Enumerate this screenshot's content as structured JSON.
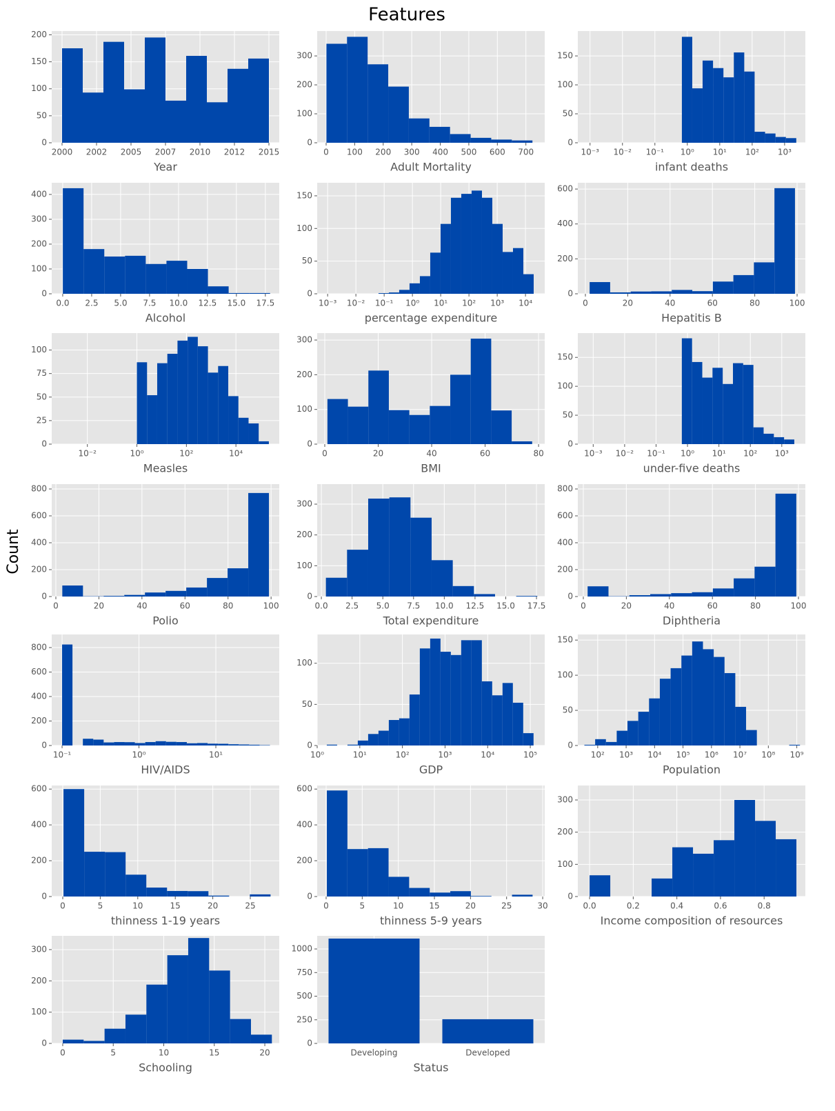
{
  "title": "Features",
  "ylabel": "Count",
  "chart_data": [
    {
      "type": "histogram",
      "xlabel": "Year",
      "color": "#0047ab",
      "grid": true,
      "bins": [
        2000,
        2001.5,
        2003,
        2004.5,
        2006,
        2007.5,
        2009,
        2010.5,
        2012,
        2013.5,
        2015
      ],
      "values": [
        175,
        93,
        187,
        99,
        195,
        78,
        161,
        75,
        137,
        156
      ],
      "xlim": [
        1999.25,
        2015.75
      ],
      "ylim": [
        0,
        207
      ],
      "xticks": [
        2000,
        {
          "value": 2002.5,
          "label": "2002"
        },
        2005,
        {
          "value": 2007.5,
          "label": "2007"
        },
        2010,
        {
          "value": 2012.5,
          "label": "2012"
        },
        2015
      ],
      "yticks": [
        0,
        50,
        100,
        150,
        200
      ]
    },
    {
      "type": "histogram",
      "xlabel": "Adult Mortality",
      "color": "#0047ab",
      "grid": true,
      "bins": [
        1,
        73.2,
        145.4,
        217.6,
        289.8,
        362,
        434.2,
        506.4,
        578.6,
        650.8,
        723
      ],
      "values": [
        342,
        366,
        271,
        194,
        84,
        55,
        30,
        17,
        11,
        8
      ],
      "xlim": [
        -31.4,
        766
      ],
      "ylim": [
        0,
        386
      ],
      "xticks": [
        0,
        100,
        200,
        300,
        400,
        500,
        600,
        700
      ],
      "yticks": [
        0,
        100,
        200,
        300
      ]
    },
    {
      "type": "histogram",
      "xlabel": "infant deaths",
      "color": "#0047ab",
      "grid": true,
      "xscale": "log",
      "bins": [
        0.68,
        1.42,
        2.96,
        6.21,
        13.0,
        27.2,
        57.0,
        119,
        250,
        524,
        1096,
        2291
      ],
      "values": [
        183,
        94,
        142,
        129,
        113,
        156,
        123,
        19,
        16,
        10,
        8
      ],
      "xlim": [
        0.00042,
        4365
      ],
      "ylim": [
        0,
        193
      ],
      "xticks": [
        {
          "value": 0.001,
          "label": "10⁻³"
        },
        {
          "value": 0.01,
          "label": "10⁻²"
        },
        {
          "value": 0.1,
          "label": "10⁻¹"
        },
        {
          "value": 1,
          "label": "10⁰"
        },
        {
          "value": 10,
          "label": "10¹"
        },
        {
          "value": 100,
          "label": "10²"
        },
        {
          "value": 1000,
          "label": "10³"
        }
      ],
      "yticks": [
        0,
        50,
        100,
        150
      ]
    },
    {
      "type": "histogram",
      "xlabel": "Alcohol",
      "color": "#0047ab",
      "grid": true,
      "bins": [
        0.01,
        1.8,
        3.59,
        5.38,
        7.17,
        8.96,
        10.75,
        12.54,
        14.33,
        16.12,
        17.91
      ],
      "values": [
        425,
        180,
        150,
        153,
        120,
        133,
        100,
        30,
        3,
        3
      ],
      "xlim": [
        -0.95,
        18.7
      ],
      "ylim": [
        0,
        447
      ],
      "xticks": [
        {
          "value": 0,
          "label": "0.0"
        },
        2.5,
        {
          "value": 5,
          "label": "5.0"
        },
        7.5,
        {
          "value": 10,
          "label": "10.0"
        },
        12.5,
        {
          "value": 15,
          "label": "15.0"
        },
        17.5
      ],
      "yticks": [
        0,
        100,
        200,
        300,
        400
      ]
    },
    {
      "type": "histogram",
      "xlabel": "percentage expenditure",
      "color": "#0047ab",
      "grid": true,
      "xscale": "log",
      "bins": [
        0.0631,
        0.1466,
        0.3404,
        0.7907,
        1.837,
        4.266,
        9.908,
        23.01,
        53.46,
        124.2,
        288.4,
        669.9,
        1556,
        3614,
        8395,
        19498
      ],
      "values": [
        1,
        2,
        6,
        16,
        27,
        63,
        107,
        147,
        153,
        158,
        147,
        107,
        64,
        70,
        30
      ],
      "xlim": [
        0.000427,
        47900
      ],
      "ylim": [
        0,
        170
      ],
      "xticks": [
        {
          "value": 0.001,
          "label": "10⁻³"
        },
        {
          "value": 0.01,
          "label": "10⁻²"
        },
        {
          "value": 0.1,
          "label": "10⁻¹"
        },
        {
          "value": 1,
          "label": "10⁰"
        },
        {
          "value": 10,
          "label": "10¹"
        },
        {
          "value": 100,
          "label": "10²"
        },
        {
          "value": 1000,
          "label": "10³"
        },
        {
          "value": 10000,
          "label": "10⁴"
        }
      ],
      "yticks": [
        0,
        50,
        100,
        150
      ]
    },
    {
      "type": "histogram",
      "xlabel": "Hepatitis B",
      "color": "#0047ab",
      "grid": true,
      "bins": [
        2,
        11.7,
        21.4,
        31.1,
        40.8,
        50.5,
        60.2,
        69.9,
        79.6,
        89.3,
        99
      ],
      "values": [
        67,
        8,
        13,
        14,
        22,
        15,
        70,
        107,
        180,
        605
      ],
      "xlim": [
        -3.58,
        103.9
      ],
      "ylim": [
        0,
        636
      ],
      "xticks": [
        0,
        20,
        40,
        60,
        80,
        100
      ],
      "yticks": [
        0,
        200,
        400,
        600
      ]
    },
    {
      "type": "histogram",
      "xlabel": "Measles",
      "color": "#0047ab",
      "grid": true,
      "xscale": "log",
      "bins": [
        1,
        2.57,
        6.607,
        16.98,
        43.65,
        112.2,
        288.4,
        741.3,
        1905,
        4898,
        12589,
        32359,
        83176,
        213796
      ],
      "values": [
        87,
        52,
        86,
        96,
        110,
        114,
        104,
        76,
        83,
        51,
        28,
        22,
        3
      ],
      "xlim": [
        0.000363,
        562000
      ],
      "ylim": [
        0,
        118
      ],
      "xticks": [
        {
          "value": 0.01,
          "label": "10⁻²"
        },
        {
          "value": 1,
          "label": "10⁰"
        },
        {
          "value": 100,
          "label": "10²"
        },
        {
          "value": 10000,
          "label": "10⁴"
        }
      ],
      "yticks": [
        0,
        25,
        50,
        75,
        100
      ]
    },
    {
      "type": "histogram",
      "xlabel": "BMI",
      "color": "#0047ab",
      "grid": true,
      "bins": [
        1,
        8.66,
        16.32,
        23.98,
        31.64,
        39.3,
        46.96,
        54.62,
        62.28,
        69.94,
        77.6
      ],
      "values": [
        130,
        108,
        212,
        98,
        84,
        110,
        200,
        304,
        97,
        8
      ],
      "xlim": [
        -2.84,
        82.3
      ],
      "ylim": [
        0,
        320
      ],
      "xticks": [
        0,
        20,
        40,
        60,
        80
      ],
      "yticks": [
        0,
        100,
        200,
        300
      ]
    },
    {
      "type": "histogram",
      "xlabel": "under-five deaths",
      "color": "#0047ab",
      "grid": true,
      "xscale": "log",
      "bins": [
        0.661,
        1.397,
        2.955,
        6.25,
        13.22,
        27.96,
        59.14,
        125.1,
        264.5,
        559.5,
        1183,
        2502
      ],
      "values": [
        183,
        142,
        115,
        132,
        104,
        140,
        137,
        29,
        18,
        12,
        8
      ],
      "xlim": [
        0.000324,
        5623
      ],
      "ylim": [
        0,
        192
      ],
      "xticks": [
        {
          "value": 0.001,
          "label": "10⁻³"
        },
        {
          "value": 0.01,
          "label": "10⁻²"
        },
        {
          "value": 0.1,
          "label": "10⁻¹"
        },
        {
          "value": 1,
          "label": "10⁰"
        },
        {
          "value": 10,
          "label": "10¹"
        },
        {
          "value": 100,
          "label": "10²"
        },
        {
          "value": 1000,
          "label": "10³"
        }
      ],
      "yticks": [
        0,
        50,
        100,
        150
      ]
    },
    {
      "type": "histogram",
      "xlabel": "Polio",
      "color": "#0047ab",
      "grid": true,
      "bins": [
        3,
        12.6,
        22.2,
        31.8,
        41.4,
        51,
        60.6,
        70.2,
        79.8,
        89.4,
        99
      ],
      "values": [
        82,
        2,
        5,
        12,
        30,
        42,
        67,
        138,
        210,
        770
      ],
      "xlim": [
        -1.92,
        103.8
      ],
      "ylim": [
        0,
        836
      ],
      "xticks": [
        0,
        20,
        40,
        60,
        80,
        100
      ],
      "yticks": [
        0,
        200,
        400,
        600,
        800
      ]
    },
    {
      "type": "histogram",
      "xlabel": "Total expenditure",
      "color": "#0047ab",
      "grid": true,
      "bins": [
        0.37,
        2.09,
        3.81,
        5.53,
        7.25,
        8.97,
        10.69,
        12.41,
        14.13,
        15.85,
        17.57
      ],
      "values": [
        61,
        152,
        318,
        322,
        256,
        118,
        34,
        8,
        0,
        2
      ],
      "xlim": [
        -0.34,
        18.17
      ],
      "ylim": [
        0,
        365
      ],
      "xticks": [
        {
          "value": 0,
          "label": "0.0"
        },
        2.5,
        {
          "value": 5,
          "label": "5.0"
        },
        7.5,
        {
          "value": 10,
          "label": "10.0"
        },
        12.5,
        {
          "value": 15,
          "label": "15.0"
        },
        17.5
      ],
      "yticks": [
        0,
        100,
        200,
        300
      ]
    },
    {
      "type": "histogram",
      "xlabel": "Diphtheria",
      "color": "#0047ab",
      "grid": true,
      "bins": [
        2,
        11.7,
        21.4,
        31.1,
        40.8,
        50.5,
        60.2,
        69.9,
        79.6,
        89.3,
        99
      ],
      "values": [
        76,
        2,
        10,
        18,
        25,
        32,
        60,
        135,
        222,
        765
      ],
      "xlim": [
        -2.56,
        103.2
      ],
      "ylim": [
        0,
        836
      ],
      "xticks": [
        0,
        20,
        40,
        60,
        80,
        100
      ],
      "yticks": [
        0,
        200,
        400,
        600,
        800
      ]
    },
    {
      "type": "histogram",
      "xlabel": "HIV/AIDS",
      "color": "#0047ab",
      "grid": true,
      "xscale": "log",
      "bins": [
        0.1,
        0.1365,
        0.1864,
        0.2544,
        0.3473,
        0.4742,
        0.6474,
        0.8838,
        1.207,
        1.647,
        2.249,
        3.07,
        4.192,
        5.722,
        7.812,
        10.67,
        14.56,
        19.88,
        27.14,
        37.05,
        50.58
      ],
      "values": [
        825,
        0,
        55,
        48,
        25,
        28,
        27,
        20,
        28,
        35,
        30,
        28,
        18,
        20,
        15,
        14,
        10,
        8,
        6,
        3
      ],
      "xlim": [
        0.0733,
        66.8
      ],
      "ylim": [
        0,
        907
      ],
      "xticks": [
        {
          "value": 0.1,
          "label": "10⁻¹"
        },
        {
          "value": 1,
          "label": "10⁰"
        },
        {
          "value": 10,
          "label": "10¹"
        }
      ],
      "yticks": [
        0,
        200,
        400,
        600,
        800
      ]
    },
    {
      "type": "histogram",
      "xlabel": "GDP",
      "color": "#0047ab",
      "grid": true,
      "xscale": "log",
      "bins": [
        1.681,
        2.938,
        5.133,
        8.974,
        15.69,
        27.43,
        47.93,
        83.8,
        146.5,
        256,
        447.6,
        782.3,
        1367,
        2390,
        4178,
        7304,
        12766,
        22320,
        39010,
        68200,
        119200
      ],
      "values": [
        1,
        0,
        1,
        6,
        14,
        18,
        31,
        33,
        62,
        118,
        130,
        114,
        110,
        128,
        128,
        78,
        61,
        76,
        52,
        15
      ],
      "xlim": [
        1,
        218000
      ],
      "ylim": [
        0,
        135
      ],
      "xticks": [
        {
          "value": 1,
          "label": "10⁰"
        },
        {
          "value": 10,
          "label": "10¹"
        },
        {
          "value": 100,
          "label": "10²"
        },
        {
          "value": 1000,
          "label": "10³"
        },
        {
          "value": 10000,
          "label": "10⁴"
        },
        {
          "value": 100000,
          "label": "10⁵"
        }
      ],
      "yticks": [
        0,
        50,
        100
      ]
    },
    {
      "type": "histogram",
      "xlabel": "Population",
      "color": "#0047ab",
      "grid": true,
      "xscale": "log",
      "bins": [
        34,
        81.4,
        194.8,
        466.4,
        1116,
        2672,
        6393,
        15300,
        36630,
        87680,
        209800,
        502200,
        1202000,
        2877000,
        6887000,
        16480000,
        39450000,
        94430000,
        226000000,
        541000000,
        1294000000
      ],
      "values": [
        1,
        9,
        5,
        21,
        35,
        48,
        67,
        95,
        110,
        128,
        148,
        137,
        126,
        103,
        55,
        22,
        0,
        0,
        0,
        1
      ],
      "xlim": [
        20,
        2000000000
      ],
      "ylim": [
        0,
        158
      ],
      "xticks": [
        {
          "value": 100,
          "label": "10²"
        },
        {
          "value": 1000,
          "label": "10³"
        },
        {
          "value": 10000,
          "label": "10⁴"
        },
        {
          "value": 100000,
          "label": "10⁵"
        },
        {
          "value": 1000000,
          "label": "10⁶"
        },
        {
          "value": 10000000,
          "label": "10⁷"
        },
        {
          "value": 100000000,
          "label": "10⁸"
        },
        {
          "value": 1000000000,
          "label": "10⁹"
        }
      ],
      "yticks": [
        0,
        50,
        100,
        150
      ]
    },
    {
      "type": "histogram",
      "xlabel": "thinness  1-19 years",
      "color": "#0047ab",
      "grid": true,
      "bins": [
        0.1,
        2.86,
        5.62,
        8.38,
        11.14,
        13.9,
        16.66,
        19.42,
        22.18,
        24.94,
        27.7
      ],
      "values": [
        600,
        250,
        248,
        122,
        50,
        31,
        30,
        5,
        0,
        12
      ],
      "xlim": [
        -1.47,
        28.86
      ],
      "ylim": [
        0,
        620
      ],
      "xticks": [
        0,
        5,
        10,
        15,
        20,
        25
      ],
      "yticks": [
        0,
        200,
        400,
        600
      ]
    },
    {
      "type": "histogram",
      "xlabel": "thinness 5-9 years",
      "color": "#0047ab",
      "grid": true,
      "bins": [
        0.1,
        2.95,
        5.8,
        8.65,
        11.5,
        14.35,
        17.2,
        20.05,
        22.9,
        25.75,
        28.6
      ],
      "values": [
        592,
        265,
        270,
        110,
        48,
        22,
        30,
        3,
        0,
        10
      ],
      "xlim": [
        -1.24,
        30.28
      ],
      "ylim": [
        0,
        620
      ],
      "xticks": [
        0,
        5,
        10,
        15,
        20,
        25,
        30
      ],
      "yticks": [
        0,
        200,
        400,
        600
      ]
    },
    {
      "type": "histogram",
      "xlabel": "Income composition of resources",
      "color": "#0047ab",
      "grid": true,
      "bins": [
        0,
        0.0948,
        0.1896,
        0.2844,
        0.3792,
        0.474,
        0.5688,
        0.6636,
        0.7584,
        0.8532,
        0.948
      ],
      "values": [
        66,
        0,
        0,
        56,
        153,
        133,
        175,
        300,
        235,
        178
      ],
      "xlim": [
        -0.054,
        0.989
      ],
      "ylim": [
        0,
        345
      ],
      "xticks": [
        {
          "value": 0,
          "label": "0.0"
        },
        0.2,
        0.4,
        0.6,
        0.8
      ],
      "yticks": [
        0,
        100,
        200,
        300
      ]
    },
    {
      "type": "histogram",
      "xlabel": "Schooling",
      "color": "#0047ab",
      "grid": true,
      "bins": [
        0,
        2.07,
        4.14,
        6.21,
        8.28,
        10.35,
        12.42,
        14.49,
        16.56,
        18.63,
        20.7
      ],
      "values": [
        12,
        8,
        47,
        92,
        188,
        282,
        337,
        233,
        78,
        28
      ],
      "xlim": [
        -1.09,
        21.43
      ],
      "ylim": [
        0,
        344
      ],
      "xticks": [
        0,
        5,
        10,
        15,
        20
      ],
      "yticks": [
        0,
        100,
        200,
        300
      ]
    },
    {
      "type": "bar",
      "xlabel": "Status",
      "color": "#0047ab",
      "grid": true,
      "categories": [
        "Developing",
        "Developed"
      ],
      "values": [
        1110,
        256
      ],
      "ylim": [
        0,
        1139
      ],
      "yticks": [
        0,
        250,
        500,
        750,
        1000
      ]
    }
  ]
}
